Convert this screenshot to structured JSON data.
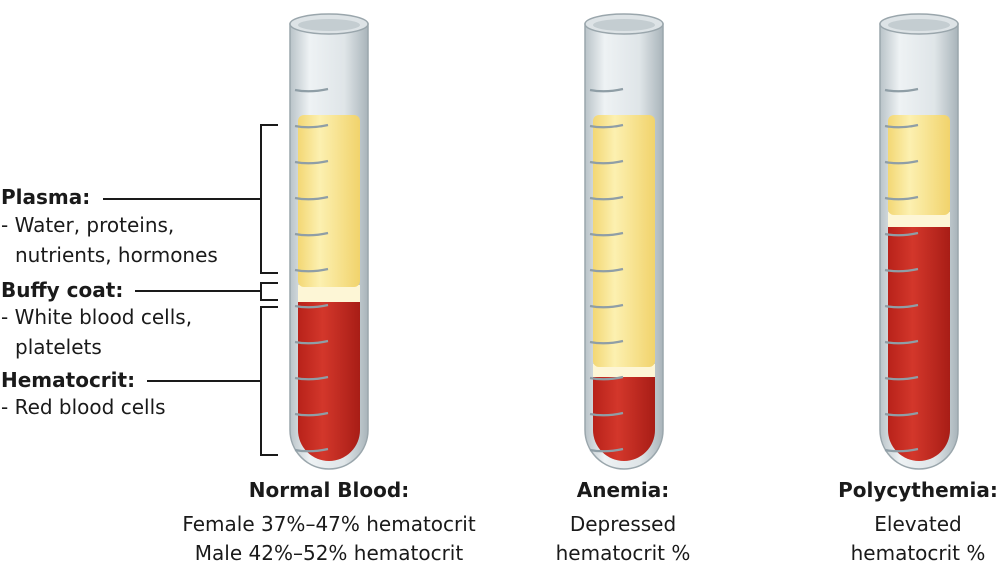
{
  "labels": [
    {
      "title": "Plasma:",
      "lines": [
        "- Water, proteins,",
        "nutrients, hormones"
      ]
    },
    {
      "title": "Buffy coat:",
      "lines": [
        "- White blood cells,",
        "platelets"
      ]
    },
    {
      "title": "Hematocrit:",
      "lines": [
        "- Red blood cells"
      ]
    }
  ],
  "tubes": [
    {
      "title": "Normal Blood:",
      "lines": [
        "Female 37%–47% hematocrit",
        "Male 42%–52% hematocrit"
      ]
    },
    {
      "title": "Anemia:",
      "lines": [
        "Depressed",
        "hematocrit %"
      ]
    },
    {
      "title": "Polycythemia:",
      "lines": [
        "Elevated",
        "hematocrit %"
      ]
    }
  ]
}
